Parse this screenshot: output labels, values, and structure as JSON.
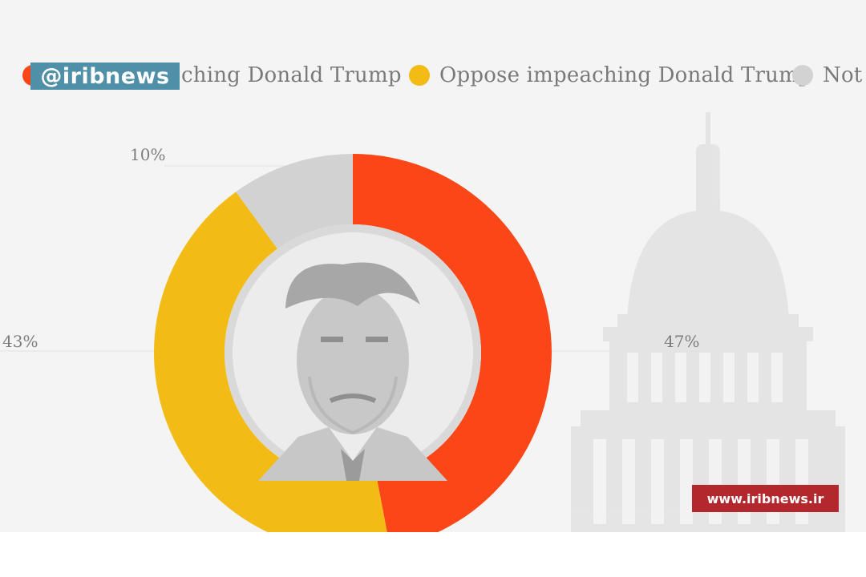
{
  "chart_data": {
    "type": "donut",
    "categories": [
      "Support impeaching Donald Trump",
      "Oppose impeaching Donald Trump",
      "Not sure"
    ],
    "values": [
      47,
      43,
      10
    ],
    "value_labels": [
      "47%",
      "43%",
      "10%"
    ],
    "colors": [
      "#fb4717",
      "#f2bb15",
      "#d2d2d2"
    ],
    "legend_visible_text": [
      "ching Donald Trump",
      "Oppose impeaching Donald Trump",
      "Not s"
    ],
    "legend_placement": "top",
    "center_image": "trump-portrait",
    "background_image": "capitol-dome"
  },
  "overlays": {
    "channel_logo": "@iribnews",
    "website": "www.iribnews.ir"
  }
}
